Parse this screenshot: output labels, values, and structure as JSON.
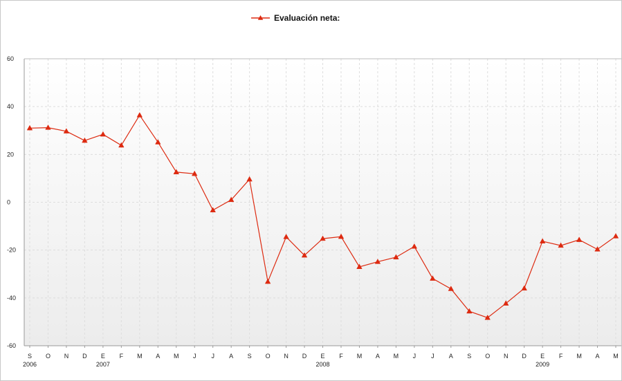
{
  "chart_data": {
    "type": "line",
    "legend": {
      "position": "top-center"
    },
    "series": [
      {
        "name": "Evaluación neta:",
        "color": "#dd2a10",
        "marker": "triangle",
        "values": [
          31,
          31.2,
          29.7,
          25.8,
          28.4,
          23.8,
          36.4,
          25.1,
          12.6,
          11.9,
          -3.3,
          1.0,
          9.6,
          -33.2,
          -14.5,
          -22.2,
          -15.2,
          -14.4,
          -27.0,
          -24.9,
          -23.0,
          -18.5,
          -31.9,
          -36.2,
          -45.6,
          -48.3,
          -42.3,
          -36.0,
          -16.3,
          -18.1,
          -15.7,
          -19.7,
          -14.2
        ]
      }
    ],
    "categories": [
      "S",
      "O",
      "N",
      "D",
      "E",
      "F",
      "M",
      "A",
      "M",
      "J",
      "J",
      "A",
      "S",
      "O",
      "N",
      "D",
      "E",
      "F",
      "M",
      "A",
      "M",
      "J",
      "J",
      "A",
      "S",
      "O",
      "N",
      "D",
      "E",
      "F",
      "M",
      "A",
      "M"
    ],
    "year_labels": [
      {
        "index": 0,
        "label": "2006"
      },
      {
        "index": 4,
        "label": "2007"
      },
      {
        "index": 16,
        "label": "2008"
      },
      {
        "index": 28,
        "label": "2009"
      }
    ],
    "ylim": [
      -60,
      60
    ],
    "yticks": [
      60,
      40,
      20,
      0,
      -20,
      -40,
      -60
    ],
    "grid": true,
    "colors": {
      "background_top": "#ffffff",
      "background_bottom": "#ececec",
      "grid": "#dddddd",
      "axis": "#999999"
    }
  }
}
